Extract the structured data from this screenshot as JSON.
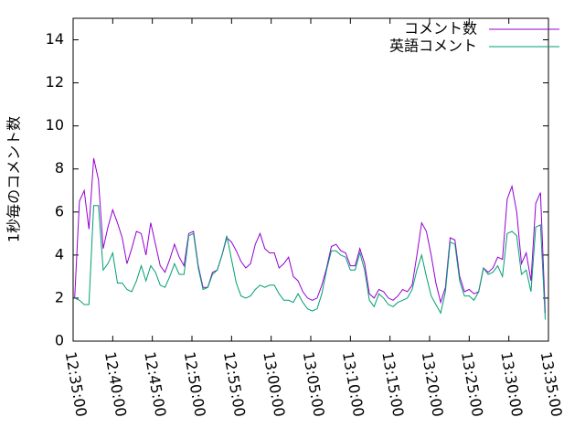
{
  "chart_data": {
    "type": "line",
    "y_label": "1秒毎のコメント数",
    "x": [
      "12:35:12",
      "12:35:48",
      "12:36:24",
      "12:37:00",
      "12:37:36",
      "12:38:12",
      "12:38:48",
      "12:39:24",
      "12:40:00",
      "12:40:36",
      "12:41:12",
      "12:41:48",
      "12:42:24",
      "12:43:00",
      "12:43:36",
      "12:44:12",
      "12:44:48",
      "12:45:24",
      "12:46:00",
      "12:46:36",
      "12:47:12",
      "12:47:48",
      "12:48:24",
      "12:49:00",
      "12:49:36",
      "12:50:12",
      "12:50:48",
      "12:51:24",
      "12:52:00",
      "12:52:36",
      "12:53:12",
      "12:53:48",
      "12:54:24",
      "12:55:00",
      "12:55:36",
      "12:56:12",
      "12:56:48",
      "12:57:24",
      "12:58:00",
      "12:58:36",
      "12:59:12",
      "12:59:48",
      "13:00:24",
      "13:01:00",
      "13:01:36",
      "13:02:12",
      "13:02:48",
      "13:03:24",
      "13:04:00",
      "13:04:36",
      "13:05:12",
      "13:05:48",
      "13:06:24",
      "13:07:00",
      "13:07:36",
      "13:08:12",
      "13:08:48",
      "13:09:24",
      "13:10:00",
      "13:10:36",
      "13:11:12",
      "13:11:48",
      "13:12:24",
      "13:13:00",
      "13:13:36",
      "13:14:12",
      "13:14:48",
      "13:15:24",
      "13:16:00",
      "13:16:36",
      "13:17:12",
      "13:17:48",
      "13:18:24",
      "13:19:00",
      "13:19:36",
      "13:20:12",
      "13:20:48",
      "13:21:24",
      "13:22:00",
      "13:22:36",
      "13:23:12",
      "13:23:48",
      "13:24:24",
      "13:25:00",
      "13:25:36",
      "13:26:12",
      "13:26:48",
      "13:27:24",
      "13:28:00",
      "13:28:36",
      "13:29:12",
      "13:29:48",
      "13:30:24",
      "13:31:00",
      "13:31:36",
      "13:32:12",
      "13:32:48",
      "13:33:24",
      "13:34:00",
      "13:34:36"
    ],
    "series": [
      {
        "name": "コメント数",
        "color": "#9400d3",
        "values": [
          2,
          6.5,
          7.0,
          5.2,
          8.5,
          7.5,
          4.3,
          5.3,
          6.1,
          5.5,
          4.8,
          3.6,
          4.3,
          5.1,
          5.0,
          4.0,
          5.5,
          4.5,
          3.5,
          3.2,
          3.8,
          4.5,
          3.9,
          3.5,
          5.0,
          5.1,
          3.5,
          2.5,
          2.5,
          3.2,
          3.3,
          4.0,
          4.8,
          4.6,
          4.2,
          3.7,
          3.4,
          3.6,
          4.5,
          5.0,
          4.3,
          4.1,
          4.1,
          3.4,
          3.6,
          3.9,
          3.0,
          2.8,
          2.3,
          2.0,
          1.9,
          2.0,
          2.6,
          3.4,
          4.4,
          4.5,
          4.2,
          4.1,
          3.5,
          3.5,
          4.3,
          3.6,
          2.2,
          2.0,
          2.4,
          2.3,
          2.0,
          1.9,
          2.1,
          2.4,
          2.3,
          2.6,
          4.0,
          5.5,
          5.1,
          4.0,
          2.7,
          1.8,
          2.5,
          4.8,
          4.7,
          3.0,
          2.3,
          2.4,
          2.2,
          2.3,
          3.4,
          3.2,
          3.4,
          3.9,
          3.8,
          6.6,
          7.2,
          6.0,
          3.6,
          4.1,
          2.8,
          6.4,
          6.9,
          1.3
        ]
      },
      {
        "name": "英語コメント",
        "color": "#009e73",
        "values": [
          2.0,
          1.9,
          1.7,
          1.7,
          6.3,
          6.3,
          3.3,
          3.6,
          4.1,
          2.7,
          2.7,
          2.4,
          2.3,
          2.8,
          3.5,
          2.8,
          3.5,
          3.2,
          2.6,
          2.5,
          3.0,
          3.6,
          3.1,
          3.1,
          4.9,
          5.0,
          3.4,
          2.4,
          2.5,
          3.1,
          3.3,
          4.0,
          4.9,
          3.8,
          2.7,
          2.1,
          2.0,
          2.1,
          2.4,
          2.6,
          2.5,
          2.6,
          2.6,
          2.2,
          1.9,
          1.9,
          1.8,
          2.2,
          1.8,
          1.5,
          1.4,
          1.5,
          2.2,
          3.3,
          4.2,
          4.2,
          4.0,
          3.9,
          3.3,
          3.3,
          4.1,
          3.3,
          1.9,
          1.6,
          2.2,
          2.0,
          1.7,
          1.6,
          1.8,
          1.9,
          2.0,
          2.4,
          3.3,
          4.0,
          3.0,
          2.1,
          1.7,
          1.3,
          2.3,
          4.6,
          4.5,
          2.8,
          2.1,
          2.1,
          1.9,
          2.3,
          3.4,
          3.1,
          3.2,
          3.5,
          3.0,
          5.0,
          5.1,
          4.9,
          3.1,
          3.3,
          2.3,
          5.3,
          5.4,
          1.0
        ]
      }
    ],
    "xlim": [
      "12:35:00",
      "13:35:00"
    ],
    "xticks": [
      "12:35:00",
      "12:40:00",
      "12:45:00",
      "12:50:00",
      "12:55:00",
      "13:00:00",
      "13:05:00",
      "13:10:00",
      "13:15:00",
      "13:20:00",
      "13:25:00",
      "13:30:00",
      "13:35:00"
    ],
    "ylim": [
      0,
      15
    ],
    "yticks": [
      0,
      2,
      4,
      6,
      8,
      10,
      12,
      14
    ],
    "legend": "top-right"
  }
}
